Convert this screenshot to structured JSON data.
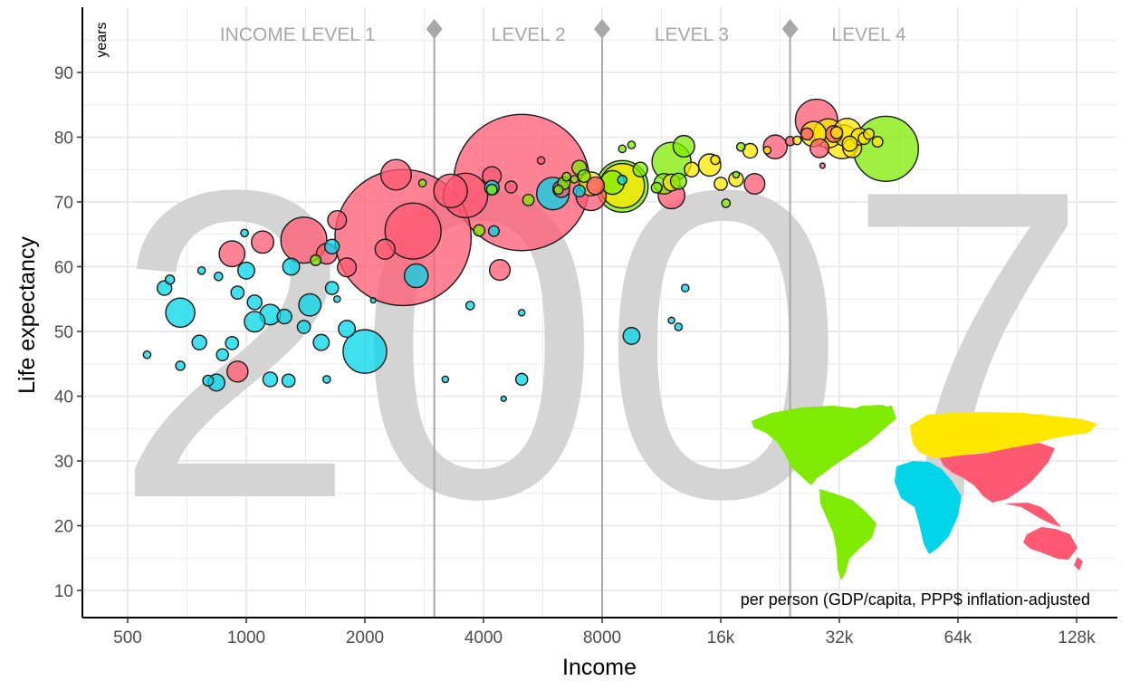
{
  "chart_data": {
    "type": "scatter",
    "title": "",
    "watermark": "2007",
    "xlabel": "Income",
    "ylabel": "Life expectancy",
    "y_unit_label": "years",
    "x_scale": "log2",
    "xlim": [
      400,
      160000
    ],
    "ylim": [
      5,
      99
    ],
    "x_ticks": [
      500,
      1000,
      2000,
      4000,
      8000,
      16000,
      32000,
      64000,
      128000
    ],
    "x_tick_labels": [
      "500",
      "1000",
      "2000",
      "4000",
      "8000",
      "16k",
      "32k",
      "64k",
      "128k"
    ],
    "y_ticks": [
      10,
      20,
      30,
      40,
      50,
      60,
      70,
      80,
      90
    ],
    "y_tick_labels": [
      "10",
      "20",
      "30",
      "40",
      "50",
      "60",
      "70",
      "80",
      "90"
    ],
    "grid": true,
    "income_levels": {
      "boundaries": [
        3000,
        8000,
        24000
      ],
      "labels": [
        "INCOME LEVEL 1",
        "LEVEL 2",
        "LEVEL 3",
        "LEVEL 4"
      ],
      "label_x": [
        1350,
        5200,
        13500,
        38000
      ],
      "color": "#a8a8a8"
    },
    "caption": "per person (GDP/capita, PPP$ inflation-adjusted",
    "region_colors": {
      "africa": "#00d5e9",
      "americas": "#7feb00",
      "asia": "#ff5872",
      "europe": "#ffe700"
    },
    "legend": "world map inset, bottom-right",
    "series": [
      {
        "region": "asia",
        "points": [
          [
            2500,
            64.5,
            1318
          ],
          [
            2650,
            65.5,
            223
          ],
          [
            2400,
            74.2,
            66
          ],
          [
            1400,
            64.1,
            150
          ],
          [
            5000,
            73.0,
            1320
          ],
          [
            3300,
            71.7,
            80
          ],
          [
            3600,
            71.0,
            140
          ],
          [
            920,
            62.0,
            47
          ],
          [
            1100,
            63.8,
            35
          ],
          [
            1700,
            67.2,
            25
          ],
          [
            1600,
            62.0,
            30
          ],
          [
            1800,
            59.9,
            25
          ],
          [
            2250,
            62.7,
            28
          ],
          [
            4400,
            59.5,
            30
          ],
          [
            4200,
            74.0,
            25
          ],
          [
            7500,
            71.0,
            65
          ],
          [
            7700,
            72.5,
            22
          ],
          [
            12000,
            71.0,
            50
          ],
          [
            22000,
            78.5,
            40
          ],
          [
            28000,
            82.6,
            127
          ],
          [
            28500,
            78.3,
            25
          ],
          [
            31000,
            80.5,
            20
          ],
          [
            950,
            43.8,
            31
          ],
          [
            19500,
            72.8,
            30
          ],
          [
            24000,
            79.4,
            6
          ],
          [
            26500,
            80.5,
            10
          ],
          [
            29000,
            75.6,
            2
          ],
          [
            5600,
            76.4,
            4
          ],
          [
            4700,
            72.3,
            10
          ],
          [
            6300,
            72.0,
            20
          ]
        ]
      },
      {
        "region": "africa",
        "points": [
          [
            2000,
            46.9,
            135
          ],
          [
            2700,
            58.6,
            40
          ],
          [
            6000,
            71.3,
            75
          ],
          [
            680,
            52.9,
            60
          ],
          [
            1150,
            52.6,
            30
          ],
          [
            1050,
            51.5,
            30
          ],
          [
            1800,
            50.4,
            20
          ],
          [
            1450,
            54.1,
            35
          ],
          [
            1250,
            52.3,
            15
          ],
          [
            620,
            56.7,
            15
          ],
          [
            760,
            48.3,
            15
          ],
          [
            840,
            42.1,
            20
          ],
          [
            870,
            46.4,
            10
          ],
          [
            920,
            48.2,
            12
          ],
          [
            1000,
            59.4,
            20
          ],
          [
            1300,
            60.0,
            20
          ],
          [
            1650,
            63.1,
            15
          ],
          [
            1050,
            54.5,
            15
          ],
          [
            950,
            56.0,
            12
          ],
          [
            1400,
            50.7,
            12
          ],
          [
            1550,
            48.3,
            18
          ],
          [
            1150,
            42.6,
            15
          ],
          [
            680,
            44.7,
            6
          ],
          [
            560,
            46.4,
            4
          ],
          [
            640,
            58.0,
            6
          ],
          [
            770,
            59.4,
            4
          ],
          [
            1650,
            56.7,
            12
          ],
          [
            3200,
            42.6,
            3
          ],
          [
            4500,
            39.6,
            2
          ],
          [
            5000,
            42.6,
            10
          ],
          [
            5000,
            52.9,
            3
          ],
          [
            3700,
            54.0,
            5
          ],
          [
            9500,
            49.3,
            20
          ],
          [
            13000,
            56.7,
            4
          ],
          [
            12000,
            51.7,
            3
          ],
          [
            12500,
            50.7,
            4
          ],
          [
            800,
            42.4,
            8
          ],
          [
            990,
            65.2,
            4
          ],
          [
            850,
            58.5,
            5
          ],
          [
            1600,
            42.6,
            4
          ],
          [
            1700,
            55.0,
            3
          ],
          [
            1280,
            42.4,
            12
          ],
          [
            4200,
            72.2,
            15
          ],
          [
            9000,
            73.4,
            6
          ],
          [
            7000,
            71.7,
            10
          ],
          [
            2100,
            54.8,
            2
          ],
          [
            4250,
            65.5,
            8
          ]
        ]
      },
      {
        "region": "americas",
        "points": [
          [
            42000,
            78.2,
            301
          ],
          [
            9000,
            72.4,
            190
          ],
          [
            12000,
            76.2,
            108
          ],
          [
            12900,
            78.6,
            33
          ],
          [
            8500,
            73.0,
            40
          ],
          [
            11500,
            72.8,
            30
          ],
          [
            10000,
            75.0,
            15
          ],
          [
            7000,
            75.3,
            15
          ],
          [
            5200,
            70.3,
            9
          ],
          [
            4200,
            71.9,
            8
          ],
          [
            7200,
            74.0,
            11
          ],
          [
            9000,
            78.2,
            4
          ],
          [
            18000,
            78.5,
            5
          ],
          [
            17500,
            74.2,
            3
          ],
          [
            16500,
            69.8,
            5
          ],
          [
            12500,
            73.2,
            18
          ],
          [
            11000,
            72.2,
            8
          ],
          [
            6400,
            72.9,
            11
          ],
          [
            6800,
            73.5,
            4
          ],
          [
            9500,
            78.8,
            4
          ],
          [
            3900,
            65.6,
            9
          ],
          [
            1500,
            61.0,
            8
          ],
          [
            6200,
            71.9,
            6
          ],
          [
            2800,
            72.9,
            4
          ],
          [
            6500,
            73.9,
            5
          ]
        ]
      },
      {
        "region": "europe",
        "points": [
          [
            15000,
            75.7,
            35
          ],
          [
            9000,
            72.5,
            140
          ],
          [
            32500,
            79.3,
            82
          ],
          [
            30000,
            80.6,
            60
          ],
          [
            33500,
            80.7,
            58
          ],
          [
            27500,
            80.5,
            45
          ],
          [
            36000,
            80.1,
            20
          ],
          [
            34000,
            79.0,
            16
          ],
          [
            31500,
            80.7,
            10
          ],
          [
            38000,
            80.5,
            8
          ],
          [
            16000,
            72.8,
            12
          ],
          [
            17500,
            73.5,
            15
          ],
          [
            12000,
            73.0,
            20
          ],
          [
            19000,
            77.9,
            15
          ],
          [
            34500,
            78.3,
            25
          ],
          [
            37000,
            79.8,
            10
          ],
          [
            40000,
            79.3,
            8
          ],
          [
            7500,
            72.8,
            40
          ],
          [
            13500,
            75.0,
            15
          ],
          [
            15500,
            76.5,
            6
          ],
          [
            25000,
            79.5,
            5
          ],
          [
            21000,
            78.0,
            4
          ]
        ]
      }
    ]
  }
}
